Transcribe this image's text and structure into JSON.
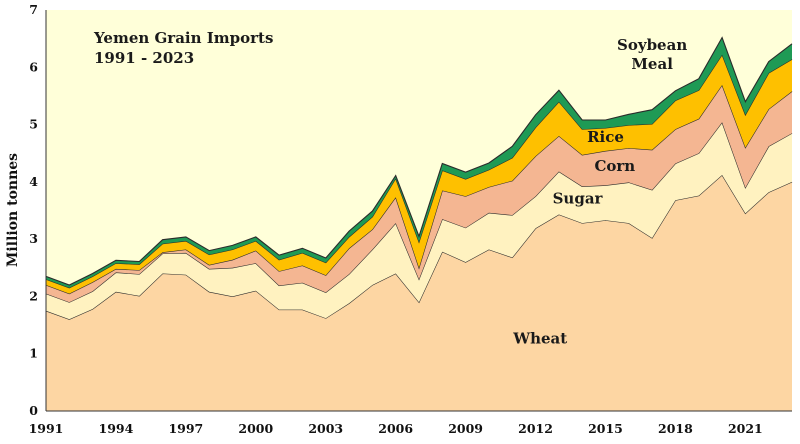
{
  "chart_data": {
    "type": "area",
    "stacked": true,
    "title": "Yemen Grain Imports",
    "subtitle": "1991 - 2023",
    "ylabel": "Million tonnes",
    "xlabel": "",
    "xlim": [
      1991,
      2023
    ],
    "ylim": [
      0,
      7
    ],
    "yticks": [
      "0",
      "1",
      "2",
      "3",
      "4",
      "5",
      "6",
      "7"
    ],
    "xticks": [
      "1991",
      "1994",
      "1997",
      "2000",
      "2003",
      "2006",
      "2009",
      "2012",
      "2015",
      "2018",
      "2021"
    ],
    "grid": false,
    "background_color": "#ffffd9",
    "x": [
      1991,
      1992,
      1993,
      1994,
      1995,
      1996,
      1997,
      1998,
      1999,
      2000,
      2001,
      2002,
      2003,
      2004,
      2005,
      2006,
      2007,
      2008,
      2009,
      2010,
      2011,
      2012,
      2013,
      2014,
      2015,
      2016,
      2017,
      2018,
      2019,
      2020,
      2021,
      2022,
      2023
    ],
    "series": [
      {
        "name": "Wheat",
        "color": "#fdd6a3",
        "values": [
          1.75,
          1.6,
          1.78,
          2.08,
          2.01,
          2.4,
          2.38,
          2.08,
          2.0,
          2.1,
          1.77,
          1.77,
          1.62,
          1.88,
          2.2,
          2.4,
          1.9,
          2.78,
          2.6,
          2.82,
          2.68,
          3.19,
          3.43,
          3.28,
          3.33,
          3.28,
          3.02,
          3.68,
          3.76,
          4.12,
          3.45,
          3.82,
          4.0
        ]
      },
      {
        "name": "Sugar",
        "color": "#fff2c0",
        "values": [
          0.3,
          0.3,
          0.31,
          0.34,
          0.38,
          0.35,
          0.38,
          0.4,
          0.5,
          0.48,
          0.42,
          0.47,
          0.45,
          0.51,
          0.62,
          0.88,
          0.4,
          0.57,
          0.6,
          0.64,
          0.74,
          0.56,
          0.75,
          0.64,
          0.61,
          0.71,
          0.84,
          0.64,
          0.74,
          0.92,
          0.45,
          0.8,
          0.85
        ]
      },
      {
        "name": "Corn",
        "color": "#f4b692",
        "values": [
          0.15,
          0.15,
          0.16,
          0.06,
          0.07,
          0.02,
          0.06,
          0.07,
          0.14,
          0.22,
          0.25,
          0.3,
          0.3,
          0.45,
          0.35,
          0.45,
          0.2,
          0.5,
          0.55,
          0.45,
          0.6,
          0.7,
          0.62,
          0.55,
          0.6,
          0.6,
          0.7,
          0.6,
          0.6,
          0.65,
          0.7,
          0.65,
          0.73
        ]
      },
      {
        "name": "Rice",
        "color": "#fec000",
        "values": [
          0.1,
          0.1,
          0.1,
          0.1,
          0.1,
          0.15,
          0.15,
          0.18,
          0.18,
          0.17,
          0.2,
          0.22,
          0.22,
          0.2,
          0.22,
          0.33,
          0.45,
          0.35,
          0.3,
          0.3,
          0.4,
          0.5,
          0.6,
          0.45,
          0.4,
          0.4,
          0.45,
          0.5,
          0.5,
          0.53,
          0.57,
          0.63,
          0.56
        ]
      },
      {
        "name": "Soybean Meal",
        "color": "#1f9a55",
        "values": [
          0.05,
          0.05,
          0.05,
          0.05,
          0.05,
          0.07,
          0.07,
          0.07,
          0.07,
          0.07,
          0.08,
          0.08,
          0.08,
          0.1,
          0.1,
          0.05,
          0.1,
          0.12,
          0.12,
          0.12,
          0.2,
          0.22,
          0.2,
          0.16,
          0.14,
          0.19,
          0.25,
          0.17,
          0.2,
          0.3,
          0.23,
          0.2,
          0.27
        ]
      }
    ]
  }
}
